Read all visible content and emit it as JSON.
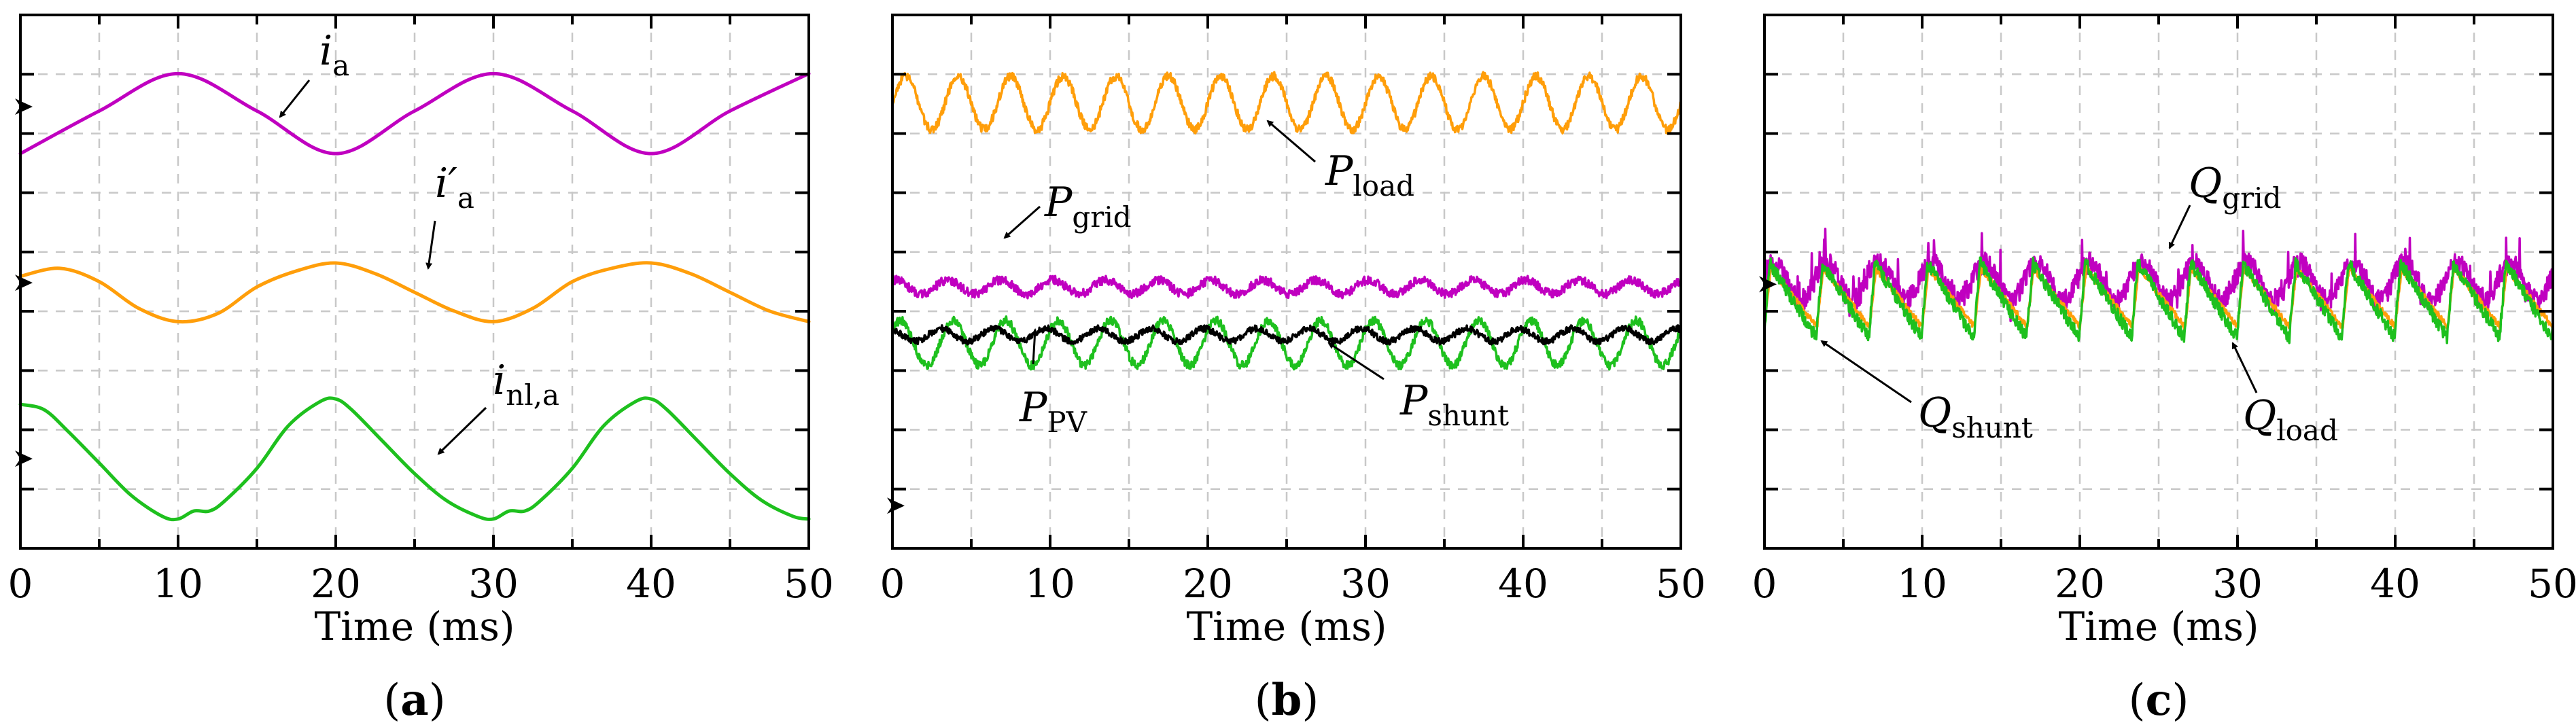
{
  "figure": {
    "colors": {
      "magenta": "#C000C0",
      "orange": "#FF9E0A",
      "green": "#1EC01E",
      "black": "#000000"
    }
  },
  "chart_data": [
    {
      "type": "line",
      "panel_label": "(a)",
      "panel_letter": "a",
      "xlabel": "Time (ms)",
      "xlim": [
        0,
        50
      ],
      "x_ticks": [
        0,
        10,
        20,
        30,
        40,
        50
      ],
      "ylim": [
        0,
        1
      ],
      "y_ticks_count": 8,
      "y_tick_labels_shown": false,
      "grid": true,
      "zero_markers_y": [
        0.828,
        0.498,
        0.168
      ],
      "series": [
        {
          "name": "i_a",
          "label_main": "i",
          "label_sub": "a",
          "color": "#C000C0",
          "x": [
            0,
            5,
            10,
            15,
            20,
            25,
            30,
            35,
            40,
            45,
            50
          ],
          "y": [
            0.74,
            0.82,
            0.89,
            0.82,
            0.74,
            0.82,
            0.89,
            0.82,
            0.74,
            0.82,
            0.89
          ]
        },
        {
          "name": "i'_a",
          "label_main": "i′",
          "label_sub": "a",
          "color": "#FF9E0A",
          "x": [
            0,
            2.5,
            5,
            7.5,
            10,
            12.5,
            15,
            17.5,
            20,
            22.5,
            25,
            27.5,
            30,
            32.5,
            35,
            37.5,
            40,
            42.5,
            45,
            47.5,
            50
          ],
          "y": [
            0.51,
            0.525,
            0.5,
            0.45,
            0.425,
            0.44,
            0.49,
            0.52,
            0.535,
            0.515,
            0.48,
            0.445,
            0.425,
            0.45,
            0.5,
            0.525,
            0.535,
            0.515,
            0.48,
            0.445,
            0.425
          ]
        },
        {
          "name": "i_nl,a",
          "label_main": "i",
          "label_sub": "nl,a",
          "color": "#1EC01E",
          "x": [
            0,
            1.5,
            3,
            5,
            7,
            9,
            10,
            11,
            12,
            13,
            15,
            17,
            19,
            20,
            21,
            23,
            25,
            27,
            29,
            30,
            31,
            32,
            33,
            35,
            37,
            39,
            40,
            41,
            43,
            45,
            47,
            49,
            50
          ],
          "y": [
            0.27,
            0.26,
            0.22,
            0.16,
            0.1,
            0.06,
            0.055,
            0.07,
            0.07,
            0.09,
            0.15,
            0.23,
            0.275,
            0.28,
            0.26,
            0.2,
            0.14,
            0.09,
            0.06,
            0.055,
            0.07,
            0.07,
            0.09,
            0.15,
            0.23,
            0.275,
            0.28,
            0.26,
            0.2,
            0.14,
            0.09,
            0.06,
            0.055
          ]
        }
      ],
      "annotations": [
        {
          "series": "i_a",
          "label_main": "i",
          "label_sub": "a"
        },
        {
          "series": "i'_a",
          "label_main": "i′",
          "label_sub": "a"
        },
        {
          "series": "i_nl,a",
          "label_main": "i",
          "label_sub": "nl,a"
        }
      ]
    },
    {
      "type": "line",
      "panel_label": "(b)",
      "panel_letter": "b",
      "xlabel": "Time (ms)",
      "xlim": [
        0,
        50
      ],
      "x_ticks": [
        0,
        10,
        20,
        30,
        40,
        50
      ],
      "ylim": [
        0,
        1
      ],
      "y_ticks_count": 8,
      "y_tick_labels_shown": false,
      "grid": true,
      "zero_markers_y": [
        0.08
      ],
      "series": [
        {
          "name": "P_load",
          "label_main": "P",
          "label_sub": "load",
          "color": "#FF9E0A",
          "waveform": {
            "mean": 0.835,
            "amplitude": 0.05,
            "frequency_hz": 300,
            "phase": 0,
            "noise": 0.008
          }
        },
        {
          "name": "P_grid",
          "label_main": "P",
          "label_sub": "grid",
          "color": "#C000C0",
          "waveform": {
            "mean": 0.49,
            "amplitude": 0.013,
            "frequency_hz": 300,
            "phase": 1.2,
            "noise": 0.008
          }
        },
        {
          "name": "P_PV",
          "label_main": "P",
          "label_sub": "PV",
          "color": "#1EC01E",
          "waveform": {
            "mean": 0.385,
            "amplitude": 0.042,
            "frequency_hz": 300,
            "phase": 0.6,
            "noise": 0.008
          }
        },
        {
          "name": "P_shunt",
          "label_main": "P",
          "label_sub": "shunt",
          "color": "#000000",
          "waveform": {
            "mean": 0.4,
            "amplitude": 0.012,
            "frequency_hz": 300,
            "phase": 2.0,
            "noise": 0.006
          }
        }
      ],
      "annotations": [
        {
          "series": "P_load",
          "label_main": "P",
          "label_sub": "load"
        },
        {
          "series": "P_grid",
          "label_main": "P",
          "label_sub": "grid"
        },
        {
          "series": "P_PV",
          "label_main": "P",
          "label_sub": "PV"
        },
        {
          "series": "P_shunt",
          "label_main": "P",
          "label_sub": "shunt"
        }
      ]
    },
    {
      "type": "line",
      "panel_label": "(c)",
      "panel_letter": "c",
      "xlabel": "Time (ms)",
      "xlim": [
        0,
        50
      ],
      "x_ticks": [
        0,
        10,
        20,
        30,
        40,
        50
      ],
      "ylim": [
        0,
        1
      ],
      "y_ticks_count": 8,
      "y_tick_labels_shown": false,
      "grid": true,
      "zero_markers_y": [
        0.495
      ],
      "series": [
        {
          "name": "Q_grid",
          "label_main": "Q",
          "label_sub": "grid",
          "color": "#C000C0",
          "waveform": {
            "mean": 0.5,
            "amplitude": 0.035,
            "frequency_hz": 300,
            "phase": 0.4,
            "noise": 0.02,
            "spiky": true
          }
        },
        {
          "name": "Q_load",
          "label_main": "Q",
          "label_sub": "load",
          "color": "#FF9E0A",
          "waveform": {
            "mean": 0.47,
            "amplitude": 0.055,
            "frequency_hz": 300,
            "phase": 0,
            "noise": 0.006,
            "sawtooth": true
          }
        },
        {
          "name": "Q_shunt",
          "label_main": "Q",
          "label_sub": "shunt",
          "color": "#1EC01E",
          "waveform": {
            "mean": 0.465,
            "amplitude": 0.07,
            "frequency_hz": 300,
            "phase": 0.1,
            "noise": 0.012,
            "sawtooth": true
          }
        }
      ],
      "annotations": [
        {
          "series": "Q_grid",
          "label_main": "Q",
          "label_sub": "grid"
        },
        {
          "series": "Q_shunt",
          "label_main": "Q",
          "label_sub": "shunt"
        },
        {
          "series": "Q_load",
          "label_main": "Q",
          "label_sub": "load"
        }
      ]
    }
  ]
}
